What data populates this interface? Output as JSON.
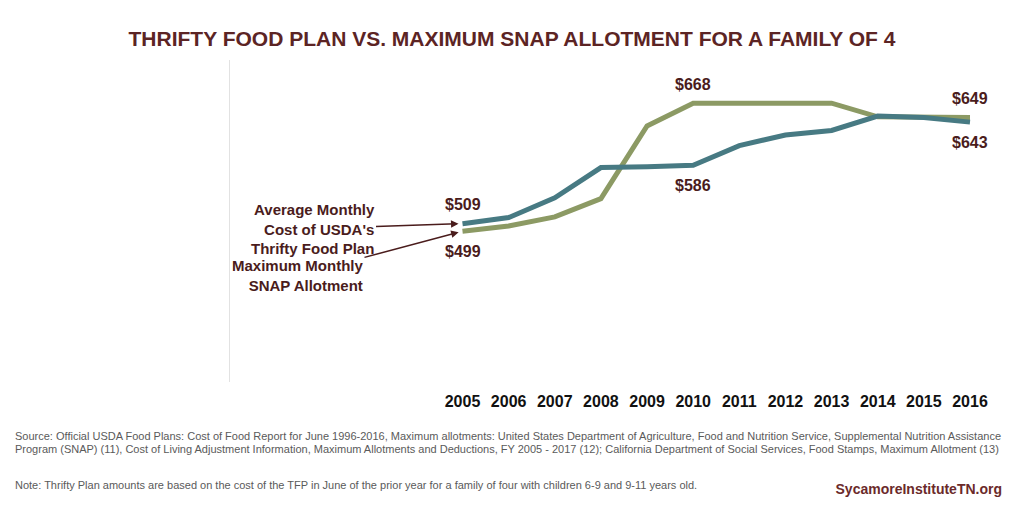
{
  "chart_data": {
    "type": "line",
    "title": "THRIFTY FOOD PLAN VS. MAXIMUM SNAP ALLOTMENT FOR A FAMILY OF 4",
    "categories": [
      "2005",
      "2006",
      "2007",
      "2008",
      "2009",
      "2010",
      "2011",
      "2012",
      "2013",
      "2014",
      "2015",
      "2016"
    ],
    "series": [
      {
        "name": "Average Monthly Cost of USDA's Thrifty Food Plan",
        "color": "#477a83",
        "values": [
          509,
          517,
          543,
          583,
          584,
          586,
          612,
          626,
          632,
          651,
          649,
          643
        ],
        "value_labels": [
          "$509",
          null,
          null,
          null,
          null,
          "$586",
          null,
          null,
          null,
          null,
          null,
          "$643"
        ]
      },
      {
        "name": "Maximum Monthly SNAP Allotment",
        "color": "#8c9a64",
        "values": [
          499,
          506,
          518,
          542,
          638,
          668,
          668,
          668,
          668,
          650,
          649,
          649
        ],
        "value_labels": [
          "$499",
          null,
          null,
          null,
          null,
          "$668",
          null,
          null,
          null,
          null,
          null,
          "$649"
        ]
      }
    ],
    "ylim": [
      300,
      725
    ],
    "yticks": [],
    "tick_labels": "x",
    "grid": false,
    "source": "Source: Official USDA Food Plans: Cost of Food Report for June 1996-2016, Maximum allotments: United States Department of Agriculture, Food and Nutrition Service, Supplemental Nutrition Assistance Program (SNAP) (11), Cost of Living Adjustment Information, Maximum Allotments and Deductions, FY 2005 - 2017 (12); California Department of Social Services, Food Stamps, Maximum Allotment (13)",
    "note": "Note: Thrifty Plan amounts are based on the cost of the TFP in June of the prior year for a family of four with children 6-9 and 9-11 years old.",
    "credit": "SycamoreInstituteTN.org"
  }
}
